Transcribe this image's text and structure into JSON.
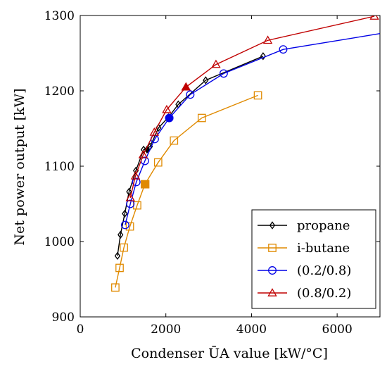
{
  "chart_data": {
    "type": "line",
    "xlabel": "Condenser ŪA value [kW/°C]",
    "ylabel": "Net power output [kW]",
    "xlim": [
      0,
      7000
    ],
    "ylim": [
      900,
      1300
    ],
    "xticks": [
      0,
      2000,
      4000,
      6000
    ],
    "yticks": [
      900,
      1000,
      1100,
      1200,
      1300
    ],
    "grid": false,
    "legend_position": "bottom-right",
    "series": [
      {
        "name": "propane",
        "color": "#000000",
        "marker": "diamond",
        "x": [
          870,
          940,
          1040,
          1140,
          1300,
          1480,
          1630,
          1830,
          2060,
          2290,
          2930,
          4270
        ],
        "y": [
          981,
          1009,
          1037,
          1066,
          1094,
          1122,
          1126,
          1151,
          1165,
          1182,
          1214,
          1246
        ],
        "highlight": {
          "x": 1560,
          "y": 1122
        }
      },
      {
        "name": "i-butane",
        "color": "#e08a00",
        "marker": "square",
        "x": [
          820,
          920,
          1020,
          1160,
          1330,
          1510,
          1820,
          2190,
          2840,
          4150
        ],
        "y": [
          939,
          965,
          992,
          1020,
          1048,
          1076,
          1105,
          1134,
          1164,
          1194
        ],
        "highlight": {
          "x": 1520,
          "y": 1076
        }
      },
      {
        "name": "(0.2/0.8)",
        "color": "#0000e6",
        "marker": "circle",
        "x": [
          1050,
          1170,
          1310,
          1510,
          1740,
          2080,
          2570,
          3350,
          4740,
          7000
        ],
        "y": [
          1022,
          1050,
          1079,
          1107,
          1136,
          1164,
          1195,
          1223,
          1255,
          1276
        ],
        "highlight": {
          "x": 2080,
          "y": 1164
        }
      },
      {
        "name": "(0.8/0.2)",
        "color": "#c00000",
        "marker": "triangle",
        "x": [
          1170,
          1290,
          1470,
          1730,
          2020,
          2470,
          3170,
          4380,
          6870
        ],
        "y": [
          1058,
          1087,
          1115,
          1145,
          1175,
          1205,
          1235,
          1267,
          1299
        ],
        "highlight": {
          "x": 2470,
          "y": 1205
        }
      }
    ]
  }
}
